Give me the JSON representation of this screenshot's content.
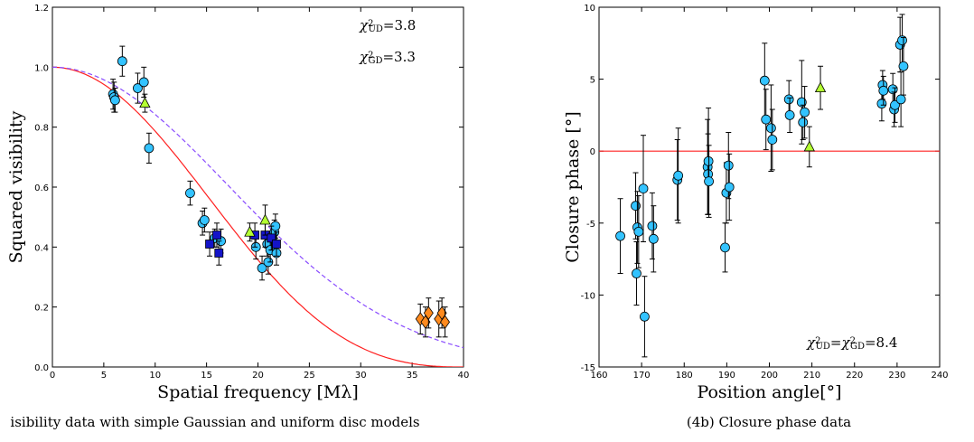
{
  "chart_data": [
    {
      "type": "scatter",
      "xlabel": "Spatial frequency [Mλ]",
      "ylabel": "Squared visibility",
      "xlim": [
        0,
        40
      ],
      "ylim": [
        0,
        1.2
      ],
      "xticks": [
        "0",
        "5",
        "10",
        "15",
        "20",
        "25",
        "30",
        "35",
        "40"
      ],
      "yticks": [
        "0.0",
        "0.2",
        "0.4",
        "0.6",
        "0.8",
        "1.0",
        "1.2"
      ],
      "caption": "isibility data with simple Gaussian and uniform disc models",
      "annotations": [
        {
          "base": "χ",
          "sup": "2",
          "sub": "UD",
          "rest": "=3.8"
        },
        {
          "base": "χ",
          "sup": "2",
          "sub": "GD",
          "rest": "=3.3"
        }
      ],
      "models": [
        {
          "name": "UD",
          "style": "solid",
          "color": "#ff2020",
          "curve": "uniform-disc",
          "zero_at": 39.5
        },
        {
          "name": "GD",
          "style": "dashed",
          "color": "#8a4cff",
          "curve": "gaussian",
          "half_at": 20.1
        }
      ],
      "series": [
        {
          "marker": "circle",
          "color": "#33c3ff",
          "points": [
            {
              "x": 5.9,
              "y": 0.91,
              "err": 0.05
            },
            {
              "x": 6.0,
              "y": 0.9,
              "err": 0.05
            },
            {
              "x": 6.1,
              "y": 0.89,
              "err": 0.04
            },
            {
              "x": 6.8,
              "y": 1.02,
              "err": 0.05
            },
            {
              "x": 8.3,
              "y": 0.93,
              "err": 0.05
            },
            {
              "x": 8.9,
              "y": 0.95,
              "err": 0.05
            },
            {
              "x": 9.4,
              "y": 0.73,
              "err": 0.05
            },
            {
              "x": 13.4,
              "y": 0.58,
              "err": 0.04
            },
            {
              "x": 14.6,
              "y": 0.48,
              "err": 0.04
            },
            {
              "x": 14.8,
              "y": 0.49,
              "err": 0.04
            },
            {
              "x": 15.8,
              "y": 0.43,
              "err": 0.03
            },
            {
              "x": 16.4,
              "y": 0.42,
              "err": 0.04
            },
            {
              "x": 19.8,
              "y": 0.4,
              "err": 0.04
            },
            {
              "x": 20.4,
              "y": 0.33,
              "err": 0.04
            },
            {
              "x": 20.9,
              "y": 0.41,
              "err": 0.04
            },
            {
              "x": 21.0,
              "y": 0.35,
              "err": 0.04
            },
            {
              "x": 21.2,
              "y": 0.39,
              "err": 0.04
            },
            {
              "x": 21.4,
              "y": 0.43,
              "err": 0.04
            },
            {
              "x": 21.6,
              "y": 0.45,
              "err": 0.04
            },
            {
              "x": 21.7,
              "y": 0.47,
              "err": 0.04
            },
            {
              "x": 21.8,
              "y": 0.38,
              "err": 0.04
            }
          ]
        },
        {
          "marker": "square",
          "color": "#1414c8",
          "points": [
            {
              "x": 15.3,
              "y": 0.41,
              "err": 0.04
            },
            {
              "x": 16.0,
              "y": 0.44,
              "err": 0.04
            },
            {
              "x": 16.2,
              "y": 0.38,
              "err": 0.04
            },
            {
              "x": 19.7,
              "y": 0.44,
              "err": 0.04
            },
            {
              "x": 20.7,
              "y": 0.44,
              "err": 0.04
            },
            {
              "x": 21.3,
              "y": 0.43,
              "err": 0.04
            },
            {
              "x": 21.8,
              "y": 0.41,
              "err": 0.04
            }
          ]
        },
        {
          "marker": "triangle",
          "color": "#b4ff32",
          "points": [
            {
              "x": 9.0,
              "y": 0.88,
              "err": 0.03
            },
            {
              "x": 19.2,
              "y": 0.45,
              "err": 0.03
            },
            {
              "x": 20.7,
              "y": 0.49,
              "err": 0.05
            }
          ]
        },
        {
          "marker": "diamond",
          "color": "#ff8a1e",
          "points": [
            {
              "x": 35.8,
              "y": 0.16,
              "err": 0.05
            },
            {
              "x": 36.3,
              "y": 0.15,
              "err": 0.05
            },
            {
              "x": 36.6,
              "y": 0.18,
              "err": 0.05
            },
            {
              "x": 37.6,
              "y": 0.16,
              "err": 0.06
            },
            {
              "x": 37.9,
              "y": 0.18,
              "err": 0.05
            },
            {
              "x": 38.2,
              "y": 0.15,
              "err": 0.05
            }
          ]
        }
      ]
    },
    {
      "type": "scatter",
      "xlabel": "Position angle",
      "xlabel_unit": "[°]",
      "ylabel": "Closure phase",
      "ylabel_unit": "[°]",
      "xlim": [
        160,
        240
      ],
      "ylim": [
        -15,
        10
      ],
      "xticks": [
        "160",
        "170",
        "180",
        "190",
        "200",
        "210",
        "220",
        "230",
        "240"
      ],
      "yticks": [
        "-15",
        "-10",
        "-5",
        "0",
        "5",
        "10"
      ],
      "caption": "(4b) Closure phase data",
      "annotations": [
        {
          "base": "χ",
          "sup": "2",
          "sub": "UD",
          "rest": "=",
          "base2": "χ",
          "sup2": "2",
          "sub2": "GD",
          "rest2": "=8.4"
        }
      ],
      "reference_line": {
        "y": 0,
        "color": "#ff2020"
      },
      "series": [
        {
          "marker": "circle",
          "color": "#33c3ff",
          "points": [
            {
              "x": 165.0,
              "y": -5.9,
              "err": 2.6
            },
            {
              "x": 168.6,
              "y": -3.8,
              "err": 2.3
            },
            {
              "x": 168.8,
              "y": -8.5,
              "err": 2.2
            },
            {
              "x": 169.0,
              "y": -5.3,
              "err": 2.5
            },
            {
              "x": 169.3,
              "y": -5.6,
              "err": 2.5
            },
            {
              "x": 170.4,
              "y": -2.6,
              "err": 3.7
            },
            {
              "x": 170.7,
              "y": -11.5,
              "err": 2.8
            },
            {
              "x": 172.5,
              "y": -5.2,
              "err": 2.3
            },
            {
              "x": 172.8,
              "y": -6.1,
              "err": 2.3
            },
            {
              "x": 178.4,
              "y": -2.0,
              "err": 2.8
            },
            {
              "x": 178.6,
              "y": -1.7,
              "err": 3.3
            },
            {
              "x": 185.5,
              "y": -1.1,
              "err": 3.3
            },
            {
              "x": 185.6,
              "y": -1.6,
              "err": 2.8
            },
            {
              "x": 185.7,
              "y": -0.7,
              "err": 3.7
            },
            {
              "x": 185.8,
              "y": -2.1,
              "err": 2.5
            },
            {
              "x": 189.6,
              "y": -6.7,
              "err": 1.7
            },
            {
              "x": 189.9,
              "y": -2.9,
              "err": 2.1
            },
            {
              "x": 190.4,
              "y": -1.0,
              "err": 2.3
            },
            {
              "x": 190.6,
              "y": -2.5,
              "err": 2.3
            },
            {
              "x": 198.9,
              "y": 4.9,
              "err": 2.6
            },
            {
              "x": 199.2,
              "y": 2.2,
              "err": 2.1
            },
            {
              "x": 200.4,
              "y": 1.6,
              "err": 3.0
            },
            {
              "x": 200.7,
              "y": 0.8,
              "err": 2.1
            },
            {
              "x": 204.6,
              "y": 3.6,
              "err": 1.3
            },
            {
              "x": 204.8,
              "y": 2.5,
              "err": 1.2
            },
            {
              "x": 207.6,
              "y": 3.4,
              "err": 2.9
            },
            {
              "x": 207.9,
              "y": 2.0,
              "err": 1.2
            },
            {
              "x": 208.3,
              "y": 2.7,
              "err": 1.8
            },
            {
              "x": 226.4,
              "y": 3.3,
              "err": 1.2
            },
            {
              "x": 226.6,
              "y": 4.6,
              "err": 1.0
            },
            {
              "x": 226.8,
              "y": 4.2,
              "err": 1.0
            },
            {
              "x": 229.0,
              "y": 4.3,
              "err": 1.1
            },
            {
              "x": 229.3,
              "y": 2.9,
              "err": 1.2
            },
            {
              "x": 229.5,
              "y": 3.2,
              "err": 1.2
            },
            {
              "x": 230.7,
              "y": 7.4,
              "err": 1.9
            },
            {
              "x": 230.9,
              "y": 3.6,
              "err": 1.9
            },
            {
              "x": 231.2,
              "y": 7.7,
              "err": 1.8
            },
            {
              "x": 231.5,
              "y": 5.9,
              "err": 2.0
            }
          ]
        },
        {
          "marker": "triangle",
          "color": "#b4ff32",
          "points": [
            {
              "x": 209.4,
              "y": 0.3,
              "err": 1.4
            },
            {
              "x": 212.0,
              "y": 4.4,
              "err": 1.5
            }
          ]
        }
      ]
    }
  ]
}
